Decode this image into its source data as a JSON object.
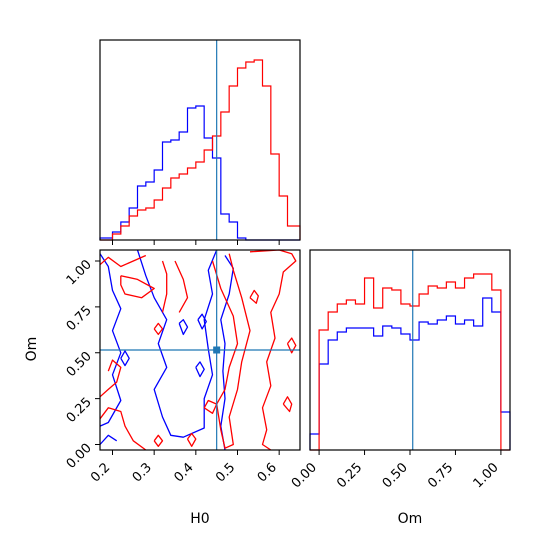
{
  "chart_data": {
    "type": "corner",
    "colors": {
      "series_a": "#0000ff",
      "series_b": "#ff0000",
      "truth": "#1f77b4",
      "axes": "#000000"
    },
    "truth": {
      "H0": 0.45,
      "Om": 0.515
    },
    "panels": [
      {
        "id": "hist-H0",
        "type": "step-histogram",
        "x_range": [
          0.17,
          0.65
        ],
        "y_range": [
          0,
          1.0
        ],
        "xticks": [],
        "bin_edges": [
          0.17,
          0.2,
          0.22,
          0.24,
          0.26,
          0.28,
          0.3,
          0.32,
          0.34,
          0.36,
          0.38,
          0.4,
          0.42,
          0.44,
          0.46,
          0.48,
          0.5,
          0.52,
          0.54,
          0.56,
          0.58,
          0.6,
          0.62,
          0.65
        ],
        "series": [
          {
            "color": "blue",
            "values": [
              0.01,
              0.04,
              0.09,
              0.16,
              0.27,
              0.29,
              0.35,
              0.49,
              0.5,
              0.54,
              0.66,
              0.67,
              0.51,
              0.41,
              0.13,
              0.09,
              0.01,
              0,
              0,
              0,
              0,
              0,
              0
            ]
          },
          {
            "color": "red",
            "values": [
              0,
              0.03,
              0.07,
              0.12,
              0.15,
              0.16,
              0.2,
              0.26,
              0.31,
              0.33,
              0.36,
              0.39,
              0.45,
              0.52,
              0.64,
              0.77,
              0.86,
              0.89,
              0.9,
              0.77,
              0.43,
              0.22,
              0.07
            ]
          }
        ]
      },
      {
        "id": "hist-Om",
        "type": "step-histogram",
        "x_range": [
          -0.05,
          1.05
        ],
        "y_range": [
          0,
          1.0
        ],
        "xticks": [
          "0.00",
          "0.25",
          "0.50",
          "0.75",
          "1.00"
        ],
        "xlabel": "Om",
        "bin_edges": [
          -0.05,
          0.0,
          0.05,
          0.1,
          0.15,
          0.2,
          0.25,
          0.3,
          0.35,
          0.4,
          0.45,
          0.5,
          0.55,
          0.6,
          0.65,
          0.7,
          0.75,
          0.8,
          0.85,
          0.9,
          0.95,
          1.0,
          1.05
        ],
        "series": [
          {
            "color": "blue",
            "values": [
              0.08,
              0.43,
              0.55,
              0.59,
              0.61,
              0.61,
              0.61,
              0.57,
              0.62,
              0.61,
              0.58,
              0.55,
              0.64,
              0.63,
              0.65,
              0.67,
              0.63,
              0.65,
              0.62,
              0.76,
              0.69,
              0.19
            ]
          },
          {
            "color": "red",
            "values": [
              0,
              0.6,
              0.69,
              0.73,
              0.75,
              0.73,
              0.86,
              0.71,
              0.81,
              0.8,
              0.73,
              0.72,
              0.78,
              0.82,
              0.81,
              0.84,
              0.81,
              0.86,
              0.88,
              0.88,
              0.8,
              0
            ]
          }
        ]
      },
      {
        "id": "contour-H0-Om",
        "type": "contour",
        "x_range": [
          0.17,
          0.65
        ],
        "y_range": [
          -0.03,
          1.06
        ],
        "xticks": [
          "0.2",
          "0.3",
          "0.4",
          "0.5",
          "0.6"
        ],
        "yticks": [
          "0.00",
          "0.25",
          "0.50",
          "0.75",
          "1.00"
        ],
        "xlabel": "H0",
        "ylabel": "Om",
        "series": [
          {
            "color": "blue",
            "contours": [
              [
                [
                  0.17,
                  1.04
                ],
                [
                  0.19,
                  0.97
                ],
                [
                  0.2,
                  0.84
                ],
                [
                  0.22,
                  0.74
                ],
                [
                  0.2,
                  0.62
                ],
                [
                  0.22,
                  0.5
                ],
                [
                  0.2,
                  0.38
                ],
                [
                  0.22,
                  0.24
                ],
                [
                  0.19,
                  0.12
                ],
                [
                  0.17,
                  0.1
                ]
              ],
              [
                [
                  0.17,
                  0.0
                ],
                [
                  0.19,
                  0.05
                ],
                [
                  0.21,
                  0.02
                ]
              ],
              [
                [
                  0.26,
                  1.06
                ],
                [
                  0.28,
                  0.92
                ],
                [
                  0.3,
                  0.8
                ],
                [
                  0.33,
                  0.68
                ],
                [
                  0.31,
                  0.55
                ],
                [
                  0.33,
                  0.42
                ],
                [
                  0.3,
                  0.3
                ],
                [
                  0.32,
                  0.15
                ],
                [
                  0.34,
                  0.05
                ],
                [
                  0.37,
                  0.04
                ],
                [
                  0.42,
                  0.09
                ],
                [
                  0.42,
                  0.25
                ],
                [
                  0.44,
                  0.38
                ],
                [
                  0.43,
                  0.52
                ],
                [
                  0.42,
                  0.68
                ],
                [
                  0.44,
                  0.82
                ],
                [
                  0.43,
                  0.95
                ],
                [
                  0.45,
                  1.06
                ]
              ],
              [
                [
                  0.36,
                  0.66
                ],
                [
                  0.37,
                  0.6
                ],
                [
                  0.38,
                  0.64
                ],
                [
                  0.37,
                  0.68
                ],
                [
                  0.36,
                  0.66
                ]
              ],
              [
                [
                  0.405,
                  0.68
                ],
                [
                  0.415,
                  0.63
                ],
                [
                  0.425,
                  0.67
                ],
                [
                  0.415,
                  0.71
                ],
                [
                  0.405,
                  0.68
                ]
              ],
              [
                [
                  0.4,
                  0.42
                ],
                [
                  0.41,
                  0.37
                ],
                [
                  0.42,
                  0.41
                ],
                [
                  0.41,
                  0.45
                ],
                [
                  0.4,
                  0.42
                ]
              ],
              [
                [
                  0.47,
                  1.03
                ],
                [
                  0.49,
                  0.96
                ],
                [
                  0.48,
                  0.82
                ],
                [
                  0.46,
                  0.68
                ],
                [
                  0.47,
                  0.55
                ],
                [
                  0.465,
                  0.4
                ],
                [
                  0.47,
                  0.25
                ],
                [
                  0.46,
                  0.1
                ],
                [
                  0.47,
                  -0.03
                ]
              ],
              [
                [
                  0.22,
                  0.47
                ],
                [
                  0.23,
                  0.43
                ],
                [
                  0.24,
                  0.47
                ],
                [
                  0.23,
                  0.51
                ],
                [
                  0.22,
                  0.47
                ]
              ]
            ]
          },
          {
            "color": "red",
            "contours": [
              [
                [
                  0.17,
                  0.98
                ],
                [
                  0.19,
                  1.02
                ],
                [
                  0.22,
                  0.97
                ],
                [
                  0.25,
                  1.0
                ],
                [
                  0.28,
                  1.03
                ]
              ],
              [
                [
                  0.22,
                  0.92
                ],
                [
                  0.26,
                  0.9
                ],
                [
                  0.3,
                  0.85
                ],
                [
                  0.27,
                  0.8
                ],
                [
                  0.23,
                  0.82
                ],
                [
                  0.22,
                  0.87
                ],
                [
                  0.22,
                  0.92
                ]
              ],
              [
                [
                  0.17,
                  0.26
                ],
                [
                  0.19,
                  0.3
                ],
                [
                  0.21,
                  0.34
                ],
                [
                  0.22,
                  0.42
                ],
                [
                  0.2,
                  0.46
                ],
                [
                  0.19,
                  0.4
                ]
              ],
              [
                [
                  0.17,
                  0.14
                ],
                [
                  0.19,
                  0.2
                ],
                [
                  0.22,
                  0.18
                ],
                [
                  0.23,
                  0.1
                ],
                [
                  0.25,
                  0.02
                ],
                [
                  0.28,
                  -0.03
                ]
              ],
              [
                [
                  0.3,
                  0.63
                ],
                [
                  0.31,
                  0.6
                ],
                [
                  0.32,
                  0.63
                ],
                [
                  0.31,
                  0.66
                ],
                [
                  0.3,
                  0.63
                ]
              ],
              [
                [
                  0.32,
                  1.0
                ],
                [
                  0.33,
                  0.93
                ],
                [
                  0.33,
                  0.82
                ],
                [
                  0.32,
                  0.72
                ]
              ],
              [
                [
                  0.35,
                  1.0
                ],
                [
                  0.37,
                  0.9
                ],
                [
                  0.38,
                  0.8
                ],
                [
                  0.36,
                  0.72
                ]
              ],
              [
                [
                  0.3,
                  0.02
                ],
                [
                  0.31,
                  -0.01
                ],
                [
                  0.32,
                  0.02
                ],
                [
                  0.31,
                  0.05
                ],
                [
                  0.3,
                  0.02
                ]
              ],
              [
                [
                  0.38,
                  0.03
                ],
                [
                  0.39,
                  -0.01
                ],
                [
                  0.4,
                  0.03
                ],
                [
                  0.39,
                  0.06
                ],
                [
                  0.38,
                  0.03
                ]
              ],
              [
                [
                  0.42,
                  0.2
                ],
                [
                  0.44,
                  0.17
                ],
                [
                  0.45,
                  0.22
                ],
                [
                  0.43,
                  0.24
                ],
                [
                  0.42,
                  0.2
                ]
              ],
              [
                [
                  0.44,
                  1.0
                ],
                [
                  0.46,
                  0.85
                ],
                [
                  0.49,
                  0.7
                ],
                [
                  0.5,
                  0.55
                ],
                [
                  0.48,
                  0.42
                ],
                [
                  0.47,
                  0.3
                ],
                [
                  0.45,
                  0.22
                ],
                [
                  0.46,
                  0.08
                ],
                [
                  0.47,
                  -0.02
                ],
                [
                  0.49,
                  0.0
                ],
                [
                  0.48,
                  0.15
                ],
                [
                  0.5,
                  0.3
                ],
                [
                  0.51,
                  0.45
                ],
                [
                  0.53,
                  0.62
                ],
                [
                  0.51,
                  0.8
                ],
                [
                  0.49,
                  0.95
                ],
                [
                  0.48,
                  1.04
                ]
              ],
              [
                [
                  0.53,
                  0.8
                ],
                [
                  0.545,
                  0.77
                ],
                [
                  0.55,
                  0.81
                ],
                [
                  0.54,
                  0.84
                ],
                [
                  0.53,
                  0.8
                ]
              ],
              [
                [
                  0.53,
                  1.05
                ],
                [
                  0.6,
                  1.06
                ],
                [
                  0.63,
                  1.04
                ],
                [
                  0.64,
                  1.0
                ],
                [
                  0.61,
                  0.94
                ],
                [
                  0.6,
                  0.82
                ],
                [
                  0.58,
                  0.72
                ],
                [
                  0.59,
                  0.58
                ],
                [
                  0.57,
                  0.45
                ],
                [
                  0.58,
                  0.32
                ],
                [
                  0.56,
                  0.2
                ],
                [
                  0.57,
                  0.08
                ],
                [
                  0.56,
                  0.0
                ],
                [
                  0.58,
                  -0.03
                ]
              ],
              [
                [
                  0.62,
                  0.55
                ],
                [
                  0.63,
                  0.5
                ],
                [
                  0.64,
                  0.54
                ],
                [
                  0.63,
                  0.58
                ],
                [
                  0.62,
                  0.55
                ]
              ],
              [
                [
                  0.61,
                  0.22
                ],
                [
                  0.625,
                  0.18
                ],
                [
                  0.63,
                  0.22
                ],
                [
                  0.62,
                  0.26
                ],
                [
                  0.61,
                  0.22
                ]
              ]
            ]
          }
        ]
      }
    ]
  }
}
